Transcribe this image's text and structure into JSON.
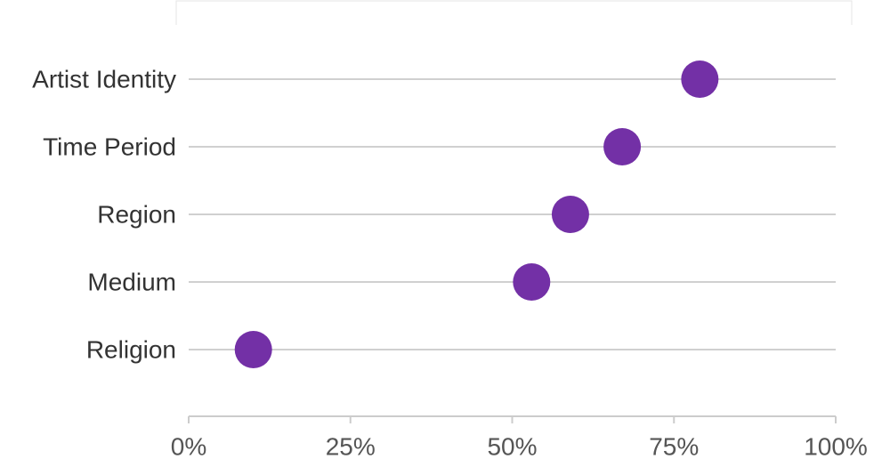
{
  "chart_data": {
    "type": "dot",
    "categories": [
      "Artist Identity",
      "Time Period",
      "Region",
      "Medium",
      "Religion"
    ],
    "values": [
      79,
      67,
      59,
      53,
      10
    ],
    "color": "#7330a6",
    "xlim": [
      0,
      100
    ],
    "xticks": [
      {
        "value": 0,
        "label": "0%"
      },
      {
        "value": 25,
        "label": "25%"
      },
      {
        "value": 50,
        "label": "50%"
      },
      {
        "value": 75,
        "label": "75%"
      },
      {
        "value": 100,
        "label": "100%"
      }
    ],
    "grid": true
  }
}
